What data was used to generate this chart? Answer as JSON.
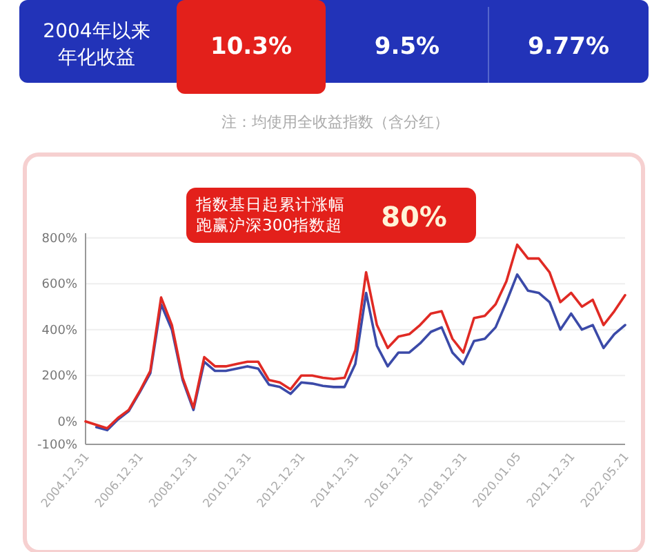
{
  "chart_data": [
    {
      "type": "other",
      "annotations": [
        "2004年以来年化收益",
        "10.3%",
        "9.5%",
        "9.77%",
        "注：均使用全收益指数（含分红）"
      ]
    },
    {
      "type": "line",
      "title": "指数基日起累计涨幅跑赢沪深300指数超",
      "subtitle": "80%",
      "categories": [
        "2004.12.31",
        null,
        null,
        null,
        null,
        "2006.12.31",
        null,
        null,
        null,
        null,
        "2008.12.31",
        null,
        null,
        null,
        null,
        "2010.12.31",
        null,
        null,
        null,
        null,
        "2012.12.31",
        null,
        null,
        null,
        null,
        "2014.12.31",
        null,
        null,
        null,
        null,
        "2016.12.31",
        null,
        null,
        null,
        null,
        "2018.12.31",
        null,
        null,
        null,
        null,
        "2020.01.05",
        null,
        null,
        null,
        null,
        "2021.12.31",
        null,
        null,
        null,
        null,
        "2022.05.21"
      ],
      "ylim": [
        -100,
        820
      ],
      "yticks": [
        {
          "value": -100,
          "label": "-100%"
        },
        {
          "value": 0,
          "label": "0%"
        },
        {
          "value": 200,
          "label": "200%"
        },
        {
          "value": 400,
          "label": "400%"
        },
        {
          "value": 600,
          "label": "600%"
        },
        {
          "value": 800,
          "label": "800%"
        }
      ],
      "grid": "y",
      "line_style": "solid",
      "series": [
        {
          "color": "#3b4aa8",
          "values": [
            null,
            -25,
            -38,
            8,
            45,
            125,
            210,
            510,
            400,
            180,
            50,
            260,
            220,
            220,
            230,
            240,
            230,
            160,
            150,
            120,
            170,
            165,
            155,
            150,
            150,
            250,
            560,
            330,
            240,
            300,
            300,
            340,
            390,
            410,
            300,
            250,
            350,
            360,
            410,
            520,
            640,
            570,
            560,
            520,
            400,
            470,
            400,
            420,
            320,
            380,
            420
          ]
        },
        {
          "color": "#e02a24",
          "values": [
            0,
            -15,
            -30,
            15,
            50,
            130,
            220,
            540,
            420,
            190,
            60,
            280,
            240,
            240,
            250,
            260,
            260,
            180,
            170,
            140,
            200,
            200,
            190,
            185,
            190,
            310,
            650,
            420,
            320,
            370,
            380,
            420,
            470,
            480,
            360,
            300,
            450,
            460,
            510,
            610,
            770,
            710,
            710,
            650,
            520,
            560,
            500,
            530,
            420,
            480,
            550
          ]
        }
      ]
    }
  ]
}
